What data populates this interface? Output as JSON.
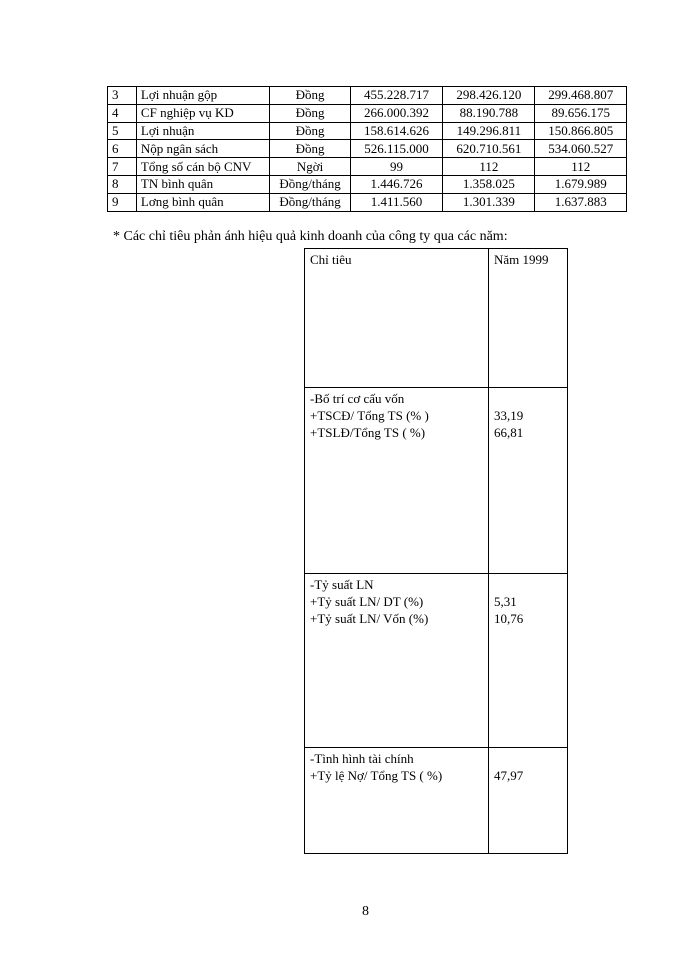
{
  "table1": {
    "rows": [
      [
        "3",
        "Lợi nhuận gộp",
        "Đồng",
        "455.228.717",
        "298.426.120",
        "299.468.807"
      ],
      [
        "4",
        "CF nghiệp vụ KD",
        "Đồng",
        "266.000.392",
        "88.190.788",
        "89.656.175"
      ],
      [
        "5",
        "Lợi nhuận",
        "Đồng",
        "158.614.626",
        "149.296.811",
        "150.866.805"
      ],
      [
        "6",
        "Nộp ngân sách",
        "Đồng",
        "526.115.000",
        "620.710.561",
        "534.060.527"
      ],
      [
        "7",
        "Tổng số cán bộ CNV",
        "Ngời",
        "99",
        "112",
        "112"
      ],
      [
        "8",
        "TN bình quân",
        "Đồng/tháng",
        "1.446.726",
        "1.358.025",
        "1.679.989"
      ],
      [
        "9",
        "Lơng   bình quân",
        "Đồng/tháng",
        "1.411.560",
        "1.301.339",
        "1.637.883"
      ]
    ]
  },
  "caption": "* Các chỉ tiêu phản ánh hiệu quả kinh doanh của công ty qua các năm:",
  "table2": {
    "header": [
      "Chỉ tiêu",
      "Năm 1999"
    ],
    "groups": [
      {
        "title": "-Bố trí cơ cấu vốn",
        "items": [
          [
            "+TSCĐ/ Tổng TS (% )",
            "33,19"
          ],
          [
            "+TSLĐ/Tổng TS ( %)",
            "66,81"
          ]
        ]
      },
      {
        "title": "-Tỷ suất LN",
        "items": [
          [
            "+Tỷ suất LN/ DT (%)",
            "5,31"
          ],
          [
            "+Tỷ suất LN/ Vốn (%)",
            "10,76"
          ]
        ]
      },
      {
        "title": "-Tình hình tài chính",
        "items": [
          [
            "+Tỷ lệ Nợ/ Tổng TS ( %)",
            "47,97"
          ]
        ]
      }
    ]
  },
  "page_number": "8"
}
